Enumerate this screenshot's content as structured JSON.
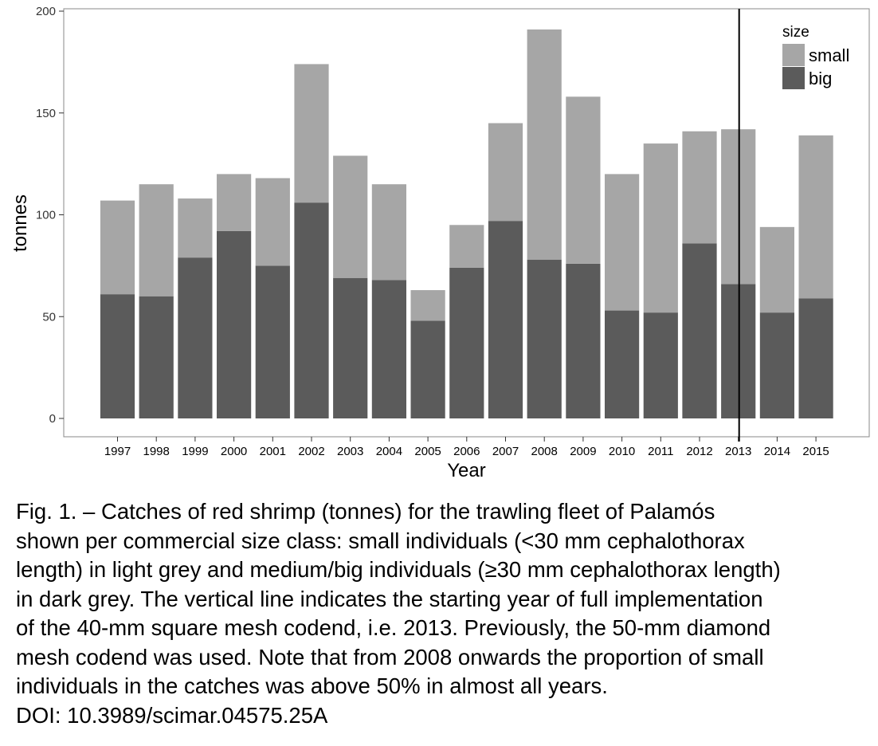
{
  "chart_data": {
    "type": "bar",
    "stacked": true,
    "xlabel": "Year",
    "ylabel": "tonnes",
    "ylim": [
      0,
      200
    ],
    "yticks": [
      "0",
      "50",
      "100",
      "150",
      "200"
    ],
    "categories": [
      "1997",
      "1998",
      "1999",
      "2000",
      "2001",
      "2002",
      "2003",
      "2004",
      "2005",
      "2006",
      "2007",
      "2008",
      "2009",
      "2010",
      "2011",
      "2012",
      "2013",
      "2014",
      "2015"
    ],
    "series": [
      {
        "name": "big",
        "color": "#5b5b5b",
        "values": [
          61,
          60,
          79,
          92,
          75,
          106,
          69,
          68,
          48,
          74,
          97,
          78,
          76,
          53,
          52,
          86,
          66,
          52,
          59
        ]
      },
      {
        "name": "small",
        "color": "#a6a6a6",
        "values": [
          46,
          55,
          29,
          28,
          43,
          68,
          60,
          47,
          15,
          21,
          48,
          113,
          82,
          67,
          83,
          55,
          76,
          42,
          80
        ]
      }
    ],
    "vline_year": "2013",
    "legend": {
      "title": "size",
      "position": "top-right",
      "items": [
        "small",
        "big"
      ]
    },
    "grid": false
  },
  "caption": {
    "lines": [
      "Fig. 1. – Catches of red shrimp (tonnes) for the trawling fleet of Palamós",
      "shown per commercial size class: small individuals (<30 mm cephalothorax",
      "length) in light grey and medium/big individuals (≥30 mm cephalothorax length)",
      "in dark grey. The vertical line indicates the starting year of full implementation",
      "of the 40-mm square mesh codend, i.e. 2013. Previously, the 50-mm diamond",
      "mesh codend was used. Note that from 2008 onwards the proportion of small",
      "individuals in the catches was above 50% in almost all years."
    ],
    "doi": "DOI: 10.3989/scimar.04575.25A"
  }
}
